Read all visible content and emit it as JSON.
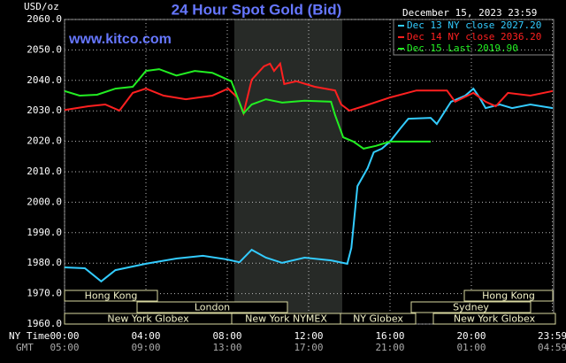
{
  "chart_data": {
    "type": "line",
    "title": "24 Hour Spot Gold (Bid)",
    "subtitle": "www.kitco.com",
    "date": "December 15, 2023 23:59",
    "y_label": "USD/oz",
    "x_row_labels": [
      "NY Time",
      "GMT"
    ],
    "xlim": [
      0,
      24
    ],
    "ylim": [
      1960,
      2060
    ],
    "xticks": [
      {
        "value": 0,
        "label": "00:00"
      },
      {
        "value": 4,
        "label": "04:00"
      },
      {
        "value": 8,
        "label": "08:00"
      },
      {
        "value": 12,
        "label": "12:00"
      },
      {
        "value": 16,
        "label": "16:00"
      },
      {
        "value": 20,
        "label": "20:00"
      },
      {
        "value": 23.983,
        "label": "23:59"
      }
    ],
    "gmt_tick_labels": [
      "05:00",
      "09:00",
      "13:00",
      "17:00",
      "21:00",
      "01:00",
      "04:59"
    ],
    "yticks": [
      {
        "value": 1960,
        "label": "1960.0"
      },
      {
        "value": 1970,
        "label": "1970.0"
      },
      {
        "value": 1980,
        "label": "1980.0"
      },
      {
        "value": 1990,
        "label": "1990.0"
      },
      {
        "value": 2000,
        "label": "2000.0"
      },
      {
        "value": 2010,
        "label": "2010.0"
      },
      {
        "value": 2020,
        "label": "2020.0"
      },
      {
        "value": 2030,
        "label": "2030.0"
      },
      {
        "value": 2040,
        "label": "2040.0"
      },
      {
        "value": 2050,
        "label": "2050.0"
      },
      {
        "value": 2060,
        "label": "2060.0"
      }
    ],
    "grid": true,
    "sessions": [
      "Hong Kong",
      "London",
      "New York Globex",
      "New York NYMEX",
      "NY Globex",
      "Sydney",
      "Hong Kong",
      "New York Globex"
    ],
    "series": [
      {
        "name": "Dec 13 NY close 2027.20",
        "color": "#33ccff",
        "x": [
          0,
          1.0,
          1.8,
          2.5,
          4.0,
          5.5,
          6.8,
          8.0,
          8.6,
          9.2,
          9.9,
          10.7,
          11.8,
          13.1,
          13.9,
          14.1,
          14.4,
          14.9,
          15.2,
          15.6,
          16.0,
          16.5,
          16.9,
          18.0,
          18.3,
          19.0,
          19.7,
          20.1,
          20.4,
          20.7,
          21.4,
          22.0,
          22.9,
          24.0
        ],
        "values": [
          1978.6,
          1978.3,
          1974.0,
          1977.7,
          1979.8,
          1981.5,
          1982.4,
          1981.2,
          1980.3,
          1984.4,
          1981.8,
          1980.1,
          1981.8,
          1980.9,
          1979.8,
          1985.0,
          2005.3,
          2011.2,
          2016.4,
          2017.6,
          2019.9,
          2024.2,
          2027.4,
          2027.7,
          2025.7,
          2033.0,
          2035.0,
          2037.3,
          2034.4,
          2030.9,
          2032.1,
          2030.9,
          2032.1,
          2030.9
        ]
      },
      {
        "name": "Dec 14 NY close 2036.20",
        "color": "#ff2020",
        "x": [
          0,
          1.17,
          2.0,
          2.7,
          3.35,
          4.0,
          4.87,
          5.96,
          7.26,
          8.04,
          8.5,
          8.8,
          9.2,
          9.8,
          10.1,
          10.3,
          10.6,
          10.8,
          11.4,
          12.3,
          13.3,
          13.6,
          14.0,
          14.7,
          16.0,
          17.3,
          18.8,
          19.2,
          20.1,
          20.7,
          21.2,
          21.8,
          22.9,
          24.0
        ],
        "values": [
          2030.3,
          2031.5,
          2032.1,
          2030.1,
          2035.9,
          2037.3,
          2035.0,
          2033.8,
          2035.0,
          2037.3,
          2034.4,
          2029.2,
          2040.2,
          2044.6,
          2045.5,
          2043.1,
          2045.5,
          2038.8,
          2039.7,
          2037.9,
          2036.7,
          2032.1,
          2030.1,
          2031.5,
          2034.4,
          2036.7,
          2036.7,
          2033.0,
          2035.9,
          2033.0,
          2031.5,
          2035.9,
          2035.0,
          2036.5
        ]
      },
      {
        "name": "Dec 15 Last 2019.90",
        "color": "#22ee22",
        "x": [
          0,
          0.74,
          1.6,
          2.5,
          3.35,
          4.0,
          4.65,
          5.5,
          6.4,
          7.26,
          8.2,
          8.8,
          9.2,
          9.9,
          10.7,
          11.8,
          13.1,
          13.3,
          13.7,
          14.2,
          14.7,
          15.3,
          16.0,
          16.8,
          18.0
        ],
        "values": [
          2036.5,
          2035.0,
          2035.3,
          2037.3,
          2037.9,
          2043.1,
          2043.7,
          2041.6,
          2043.1,
          2042.5,
          2039.7,
          2029.2,
          2032.1,
          2033.8,
          2032.7,
          2033.3,
          2033.0,
          2028.6,
          2021.3,
          2019.9,
          2017.6,
          2018.5,
          2019.9,
          2019.9,
          2019.9
        ]
      }
    ]
  }
}
